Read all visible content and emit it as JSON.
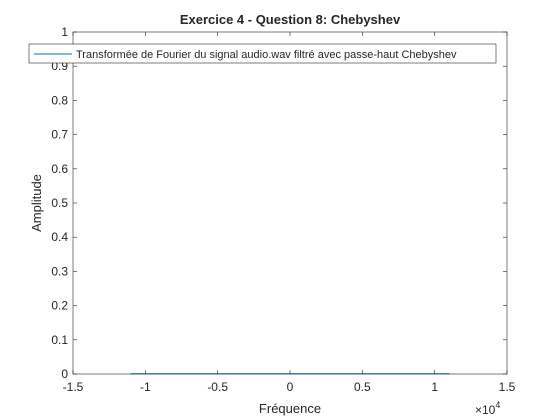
{
  "chart_data": {
    "type": "line",
    "title": "Exercice 4 - Question 8: Chebyshev",
    "xlabel": "Fréquence",
    "ylabel": "Amplitude",
    "xlim": [
      -15000,
      15000
    ],
    "ylim": [
      0,
      1
    ],
    "x_ticks": [
      -15000,
      -10000,
      -5000,
      0,
      5000,
      10000,
      15000
    ],
    "x_tick_labels": [
      "-1.5",
      "-1",
      "-0.5",
      "0",
      "0.5",
      "1",
      "1.5"
    ],
    "x_exponent_label": "×10",
    "x_exponent_power": "4",
    "y_ticks": [
      0,
      0.1,
      0.2,
      0.3,
      0.4,
      0.5,
      0.6,
      0.7,
      0.8,
      0.9,
      1
    ],
    "y_tick_labels": [
      "0",
      "0.1",
      "0.2",
      "0.3",
      "0.4",
      "0.5",
      "0.6",
      "0.7",
      "0.8",
      "0.9",
      "1"
    ],
    "grid": false,
    "legend_position": "top",
    "series": [
      {
        "name": "Transformée de Fourier du signal audio.wav filtré avec passe-haut Chebyshev",
        "color": "#0072bd",
        "x": [
          -11025,
          -5000,
          0,
          5000,
          11025
        ],
        "y": [
          0.001,
          0.001,
          0.001,
          0.001,
          0.001
        ]
      }
    ]
  }
}
